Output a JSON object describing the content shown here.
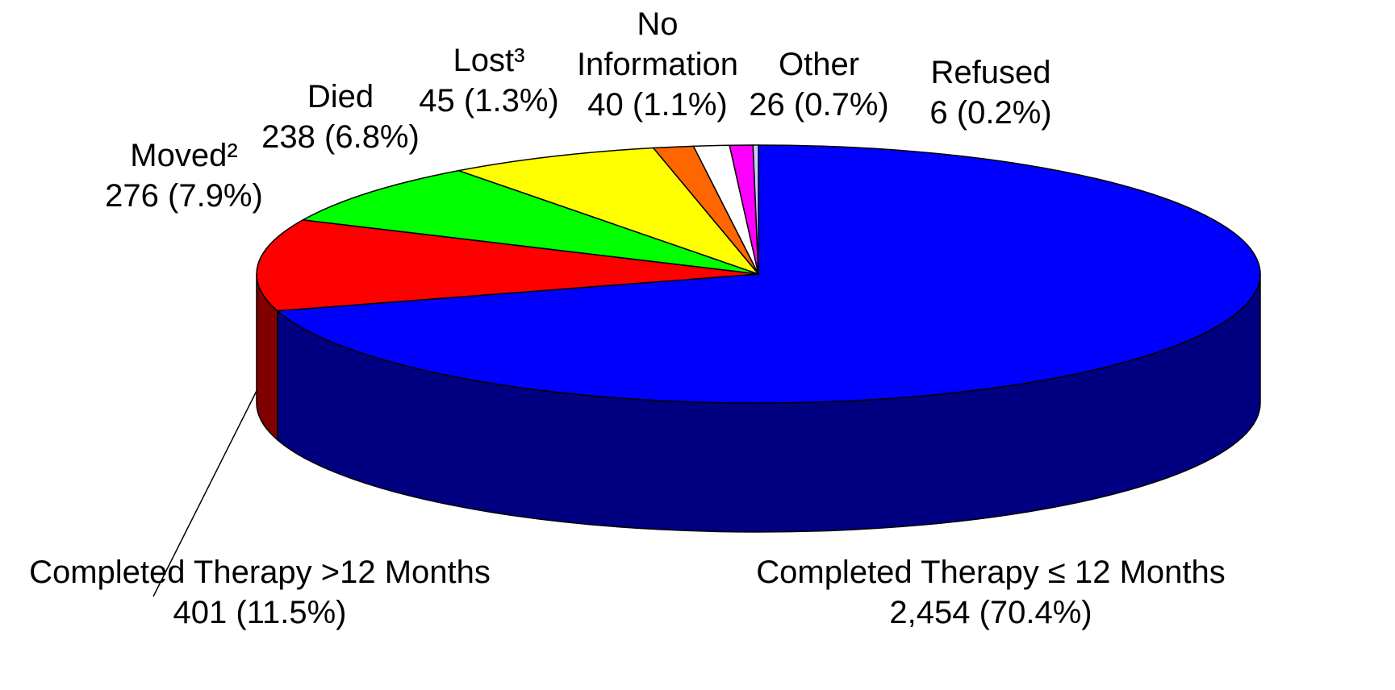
{
  "chart_data": {
    "type": "pie",
    "categories": [
      "Completed Therapy ≤ 12 Months",
      "Completed Therapy >12 Months",
      "Moved²",
      "Died",
      "Lost³",
      "No Information",
      "Other",
      "Refused"
    ],
    "values": [
      2454,
      401,
      276,
      238,
      45,
      40,
      26,
      6
    ],
    "value_labels": [
      "2,454 (70.4%)",
      "401 (11.5%)",
      "276 (7.9%)",
      "238 (6.8%)",
      "45 (1.3%)",
      "40 (1.1%)",
      "26 (0.7%)",
      "6 (0.2%)"
    ],
    "colors": [
      "#0000ff",
      "#ff0000",
      "#00ff00",
      "#ffff00",
      "#ff6600",
      "#ffffff",
      "#ff00ff",
      "#ccccff"
    ]
  }
}
